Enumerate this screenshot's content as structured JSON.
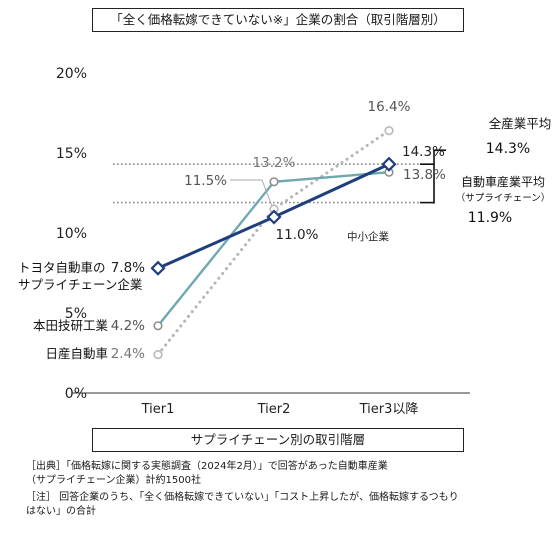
{
  "chart_data": {
    "type": "line",
    "title": "「全く価格転嫁できていない※」企業の割合（取引階層別）",
    "xlabel": "サプライチェーン別の取引階層",
    "categories": [
      "Tier1",
      "Tier2",
      "Tier3以降"
    ],
    "y_ticks": [
      "0%",
      "5%",
      "10%",
      "15%",
      "20%"
    ],
    "ylim": [
      0,
      20
    ],
    "series": [
      {
        "name": "トヨタ自動車のサプライチェーン企業",
        "values": [
          7.8,
          11.0,
          14.3
        ],
        "value_labels": [
          "7.8%",
          "11.0%",
          "14.3%"
        ],
        "color": "#1f3e7c",
        "style": "solid-bold",
        "marker": "diamond"
      },
      {
        "name": "本田技研工業",
        "values": [
          4.2,
          13.2,
          13.8
        ],
        "value_labels": [
          "4.2%",
          "13.2%",
          "13.8%"
        ],
        "color": "#6fa8ad",
        "style": "solid",
        "marker": "circle"
      },
      {
        "name": "日産自動車",
        "values": [
          2.4,
          11.5,
          16.4
        ],
        "value_labels": [
          "2.4%",
          "11.5%",
          "16.4%"
        ],
        "color": "#b5b5b5",
        "style": "dotted",
        "marker": "circle"
      }
    ],
    "reference_lines": [
      {
        "name": "全産業平均",
        "value": 14.3,
        "label": "14.3%"
      },
      {
        "name": "自動車産業平均",
        "sub": "（サプライチェーン）",
        "value": 11.9,
        "label": "11.9%"
      }
    ],
    "annotations": [
      "中小企業"
    ]
  },
  "notes": {
    "source": "［出典］「価格転嫁に関する実態調査（2024年2月）」で回答があった自動車産業\n（サプライチェーン企業）計約1500社",
    "footnote": "［注］ 回答企業のうち、「全く価格転嫁できていない」「コスト上昇したが、価格転嫁するつもり\nはない」の合計"
  }
}
